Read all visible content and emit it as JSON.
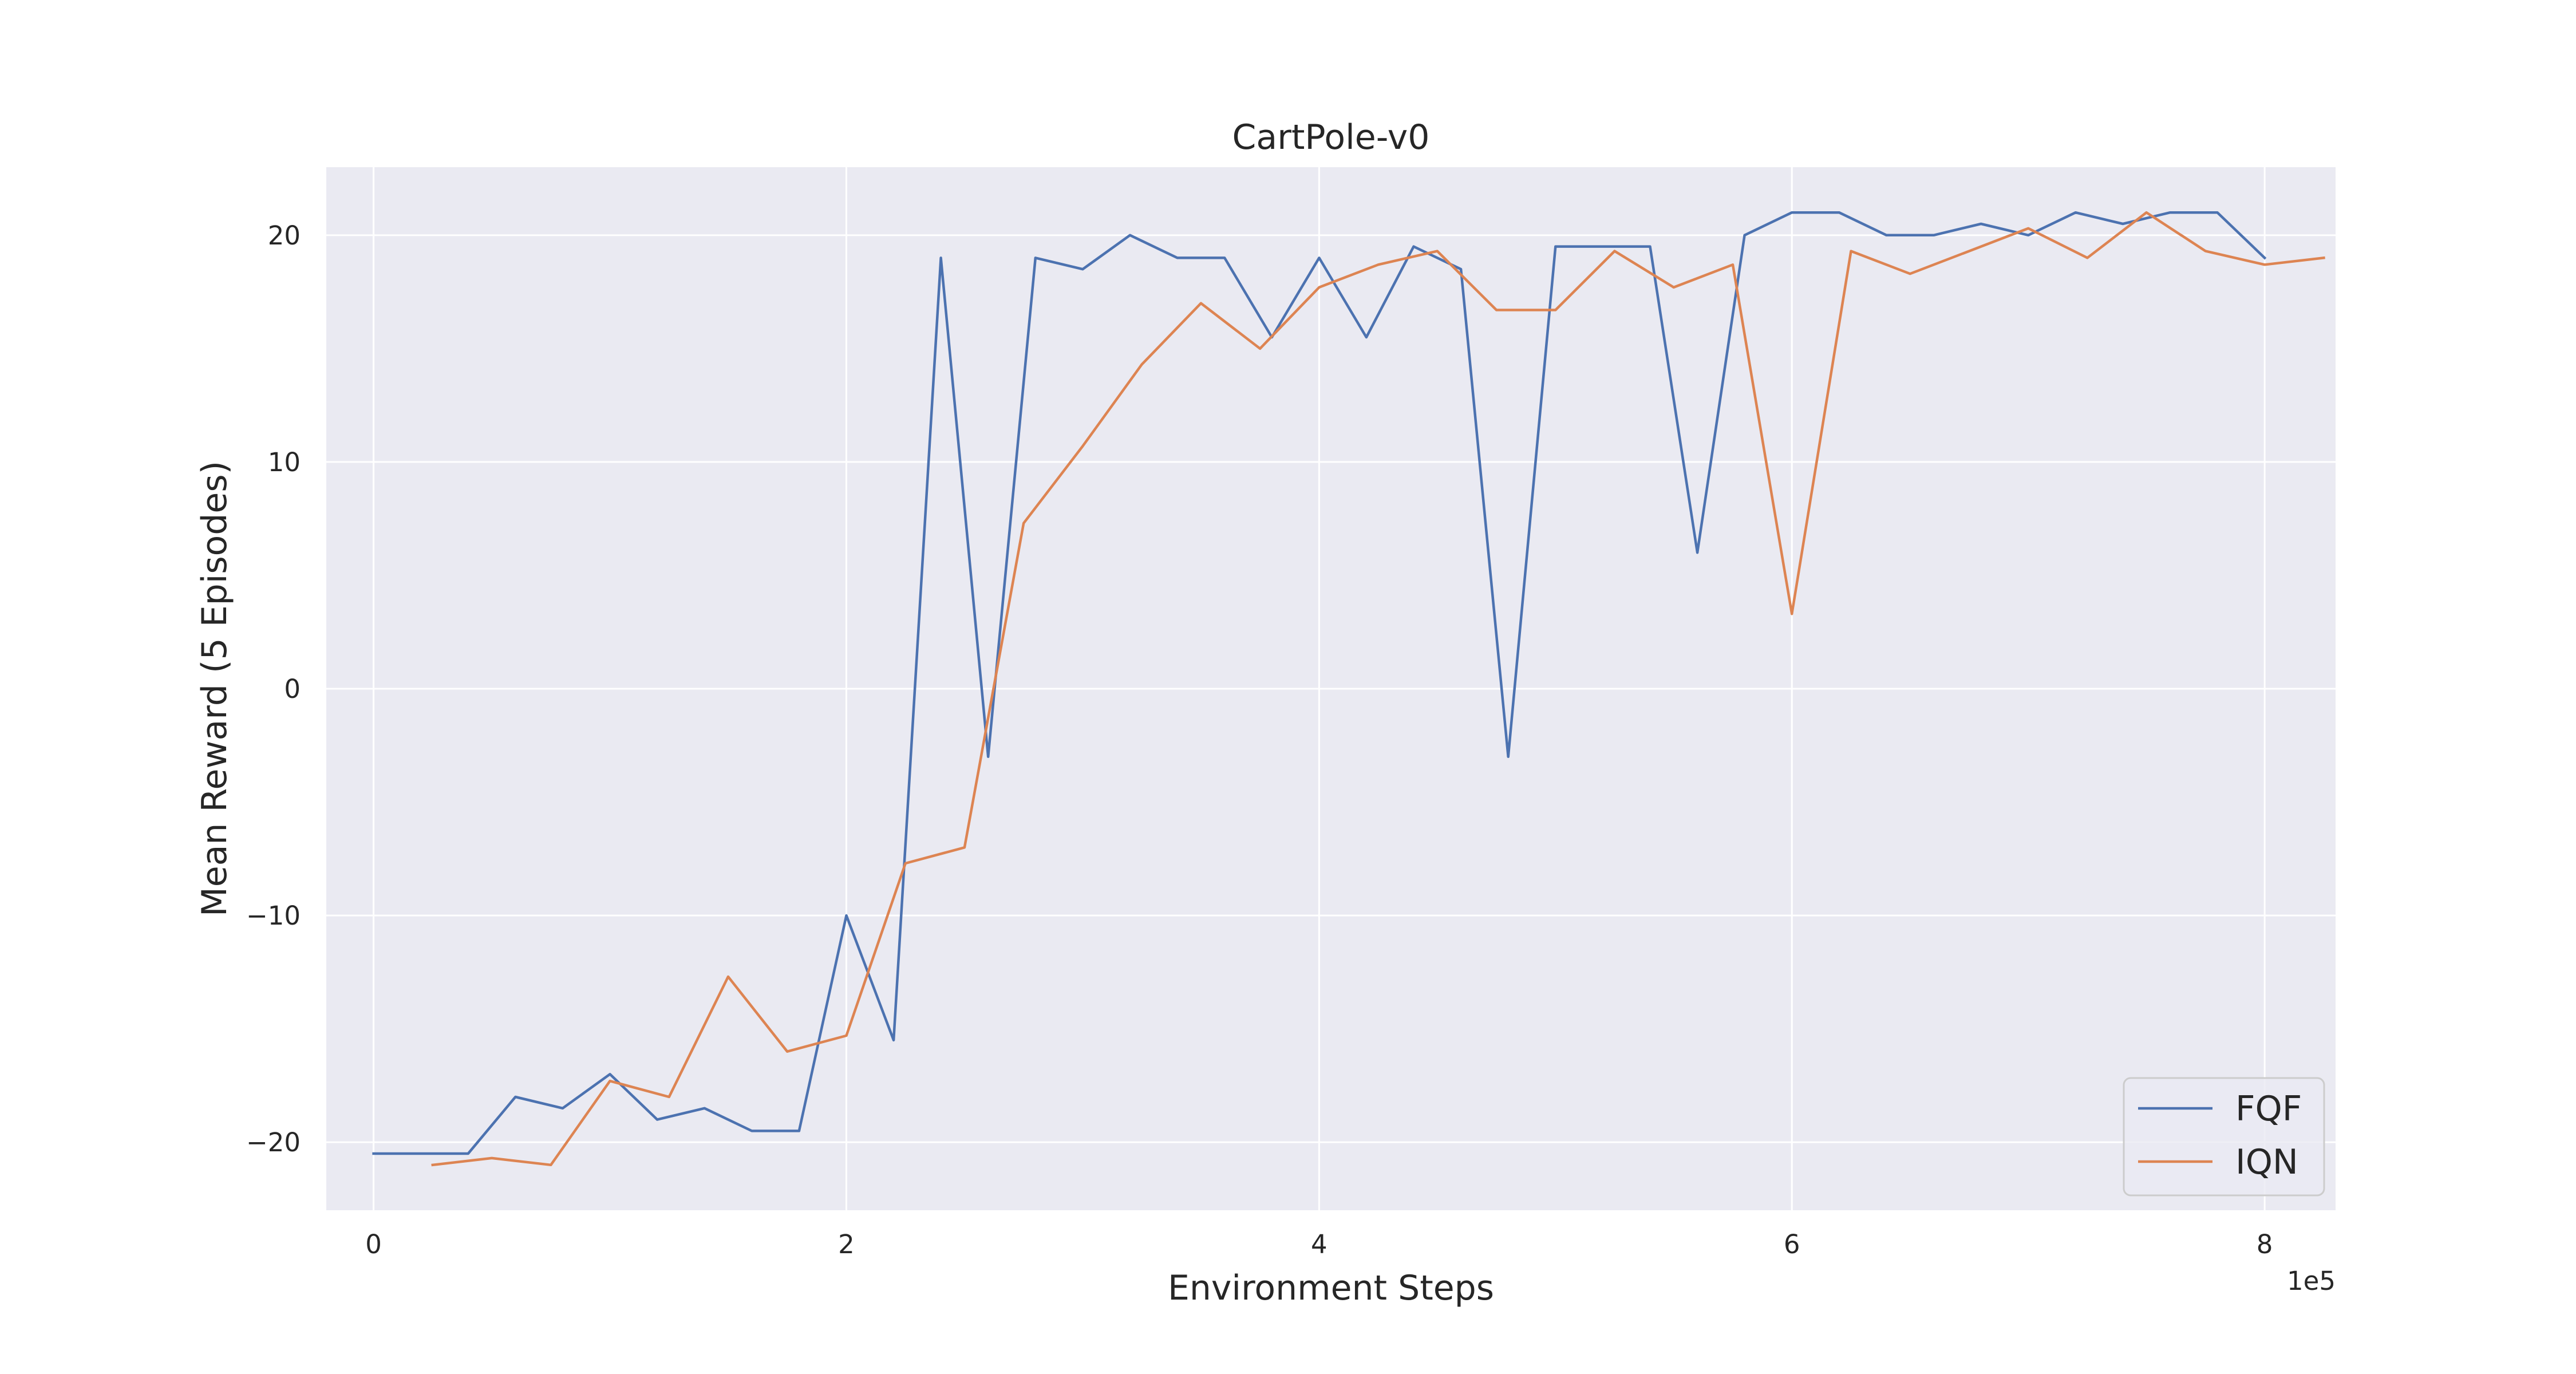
{
  "chart_data": {
    "type": "line",
    "title": "CartPole-v0",
    "xlabel": "Environment Steps",
    "ylabel": "Mean Reward (5 Episodes)",
    "x_offset_text": "1e5",
    "xlim": [
      -0.2,
      8.3
    ],
    "ylim": [
      -23.0,
      23.0
    ],
    "xticks": [
      0,
      2,
      4,
      6,
      8
    ],
    "xtick_labels": [
      "0",
      "2",
      "4",
      "6",
      "8"
    ],
    "yticks": [
      -20,
      -10,
      0,
      10,
      20
    ],
    "ytick_labels": [
      "−20",
      "−10",
      "0",
      "10",
      "20"
    ],
    "grid": true,
    "legend_position": "bottom-right",
    "series": [
      {
        "name": "FQF",
        "color": "#4c72b0",
        "x": [
          0,
          0.2,
          0.4,
          0.6,
          0.8,
          1.0,
          1.2,
          1.4,
          1.6,
          1.8,
          2.0,
          2.2,
          2.4,
          2.6,
          2.8,
          3.0,
          3.2,
          3.4,
          3.6,
          3.8,
          4.0,
          4.2,
          4.4,
          4.6,
          4.8,
          5.0,
          5.2,
          5.4,
          5.6,
          5.8,
          6.0,
          6.2,
          6.4,
          6.6,
          6.8,
          7.0,
          7.2,
          7.4,
          7.6,
          7.8,
          8.0
        ],
        "y": [
          -20.5,
          -20.5,
          -20.5,
          -18,
          -18.5,
          -17,
          -19,
          -18.5,
          -19.5,
          -19.5,
          -10,
          -15.5,
          19,
          -3,
          19,
          18.5,
          20,
          19,
          19,
          15.5,
          19,
          15.5,
          19.5,
          18.5,
          -3,
          19.5,
          19.5,
          19.5,
          6,
          20,
          21,
          21,
          20,
          20,
          20.5,
          20,
          21,
          20.5,
          21,
          21,
          19
        ]
      },
      {
        "name": "IQN",
        "color": "#dd8452",
        "x": [
          0.25,
          0.5,
          0.75,
          1.0,
          1.25,
          1.5,
          1.75,
          2.0,
          2.25,
          2.5,
          2.75,
          3.0,
          3.25,
          3.5,
          3.75,
          4.0,
          4.25,
          4.5,
          4.75,
          5.0,
          5.25,
          5.5,
          5.75,
          6.0,
          6.25,
          6.5,
          6.75,
          7.0,
          7.25,
          7.5,
          7.75,
          8.0,
          8.25
        ],
        "y": [
          -21,
          -20.7,
          -21,
          -17.3,
          -18,
          -12.7,
          -16,
          -15.3,
          -7.7,
          -7,
          7.3,
          10.7,
          14.3,
          17,
          15,
          17.7,
          18.7,
          19.3,
          16.7,
          16.7,
          19.3,
          17.7,
          18.7,
          3.3,
          19.3,
          18.3,
          19.3,
          20.3,
          19,
          21,
          19.3,
          18.7,
          19
        ]
      }
    ]
  }
}
